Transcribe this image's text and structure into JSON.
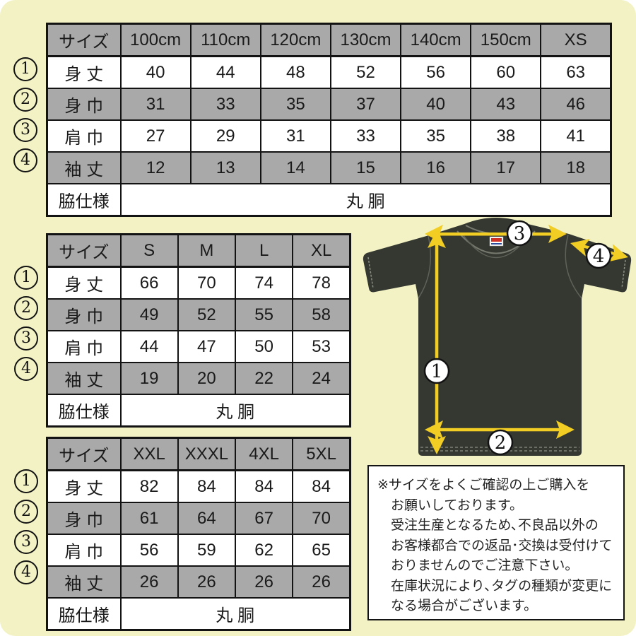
{
  "page": {
    "background": "#f2f2c4"
  },
  "legend": {
    "markers": [
      "1",
      "2",
      "3",
      "4"
    ]
  },
  "tables": [
    {
      "id": "kids",
      "header": [
        "サイズ",
        "100cm",
        "110cm",
        "120cm",
        "130cm",
        "140cm",
        "150cm",
        "XS"
      ],
      "rows": [
        {
          "label": "身 丈",
          "values": [
            "40",
            "44",
            "48",
            "52",
            "56",
            "60",
            "63"
          ]
        },
        {
          "label": "身 巾",
          "values": [
            "31",
            "33",
            "35",
            "37",
            "40",
            "43",
            "46"
          ]
        },
        {
          "label": "肩 巾",
          "values": [
            "27",
            "29",
            "31",
            "33",
            "35",
            "38",
            "41"
          ]
        },
        {
          "label": "袖 丈",
          "values": [
            "12",
            "13",
            "14",
            "15",
            "16",
            "17",
            "18"
          ]
        }
      ],
      "footer": {
        "label": "脇仕様",
        "value": "丸 胴"
      }
    },
    {
      "id": "adult",
      "header": [
        "サイズ",
        "S",
        "M",
        "L",
        "XL"
      ],
      "rows": [
        {
          "label": "身 丈",
          "values": [
            "66",
            "70",
            "74",
            "78"
          ]
        },
        {
          "label": "身 巾",
          "values": [
            "49",
            "52",
            "55",
            "58"
          ]
        },
        {
          "label": "肩 巾",
          "values": [
            "44",
            "47",
            "50",
            "53"
          ]
        },
        {
          "label": "袖 丈",
          "values": [
            "19",
            "20",
            "22",
            "24"
          ]
        }
      ],
      "footer": {
        "label": "脇仕様",
        "value": "丸 胴"
      }
    },
    {
      "id": "big",
      "header": [
        "サイズ",
        "XXL",
        "XXXL",
        "4XL",
        "5XL"
      ],
      "rows": [
        {
          "label": "身 丈",
          "values": [
            "82",
            "84",
            "84",
            "84"
          ]
        },
        {
          "label": "身 巾",
          "values": [
            "61",
            "64",
            "67",
            "70"
          ]
        },
        {
          "label": "肩 巾",
          "values": [
            "56",
            "59",
            "62",
            "65"
          ]
        },
        {
          "label": "袖 丈",
          "values": [
            "26",
            "26",
            "26",
            "26"
          ]
        }
      ],
      "footer": {
        "label": "脇仕様",
        "value": "丸 胴"
      }
    }
  ],
  "shirt": {
    "markers": [
      "1",
      "2",
      "3",
      "4"
    ],
    "colors": {
      "body": "#343831",
      "arrow": "#f2cd23",
      "stitch": "#75796e"
    }
  },
  "notice": {
    "lines": [
      "※サイズをよくご確認の上ご購入を",
      "お願いしております。",
      "受注生産となるため､不良品以外の",
      "お客様都合での返品･交換は受付けて",
      "おりませんのでご注意下さい。",
      "在庫状況により､タグの種類が変更に",
      "なる場合がございます。"
    ]
  }
}
